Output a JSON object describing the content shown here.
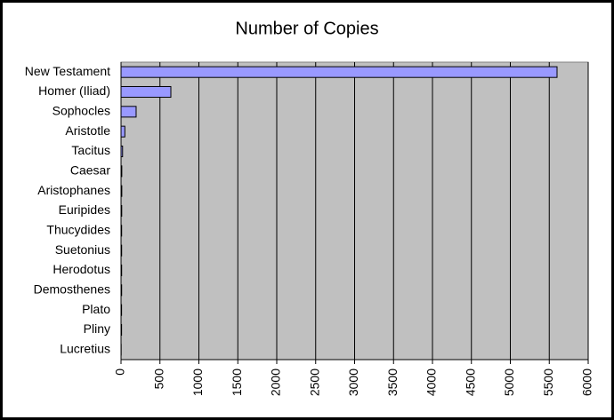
{
  "chart_data": {
    "type": "hbar",
    "title": "Number of Copies",
    "categories": [
      "New Testament",
      "Homer (Iliad)",
      "Sophocles",
      "Aristotle",
      "Tacitus",
      "Caesar",
      "Aristophanes",
      "Euripides",
      "Thucydides",
      "Suetonius",
      "Herodotus",
      "Demosthenes",
      "Plato",
      "Pliny",
      "Lucretius"
    ],
    "values": [
      5600,
      640,
      194,
      49,
      20,
      10,
      10,
      9,
      8,
      8,
      8,
      8,
      7,
      7,
      2
    ],
    "color": "#9999ff",
    "xlim": [
      0,
      6000
    ],
    "xticks": [
      0,
      500,
      1000,
      1500,
      2000,
      2500,
      3000,
      3500,
      4000,
      4500,
      5000,
      5500,
      6000
    ],
    "grid": true
  }
}
